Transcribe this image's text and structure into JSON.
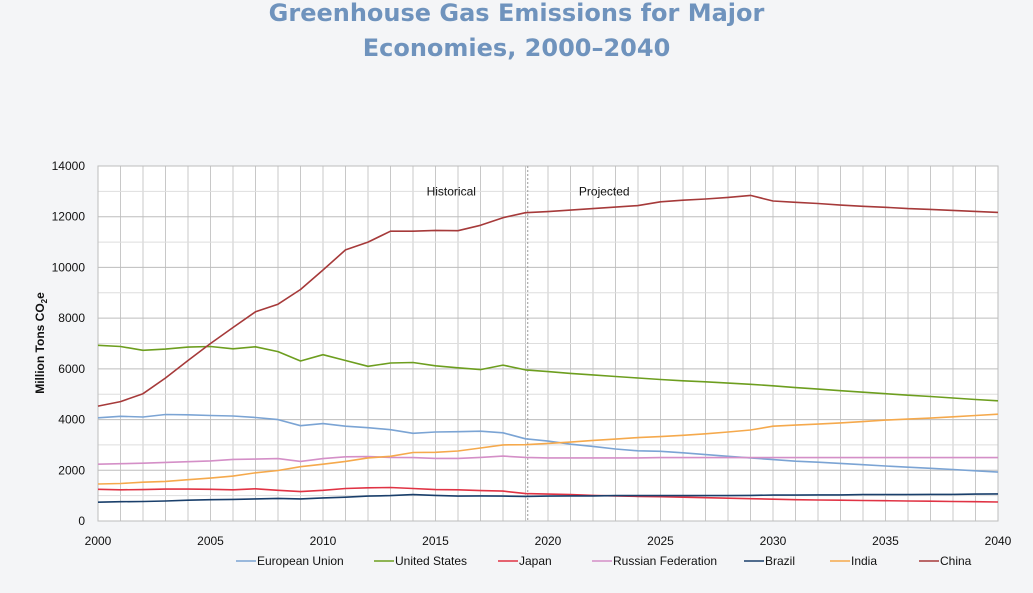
{
  "chart_data": {
    "type": "line",
    "title_line1": "Greenhouse Gas Emissions for Major",
    "title_line2": "Economies, 2000–2040",
    "xlabel": "",
    "ylabel_main": "Million Tons CO",
    "ylabel_sub": "2",
    "ylabel_end": "e",
    "xlim": [
      2000,
      2040
    ],
    "ylim": [
      0,
      14000
    ],
    "x_ticks": [
      2000,
      2005,
      2010,
      2015,
      2020,
      2025,
      2030,
      2035,
      2040
    ],
    "y_ticks": [
      0,
      2000,
      4000,
      6000,
      8000,
      10000,
      12000,
      14000
    ],
    "grid": true,
    "annotations": [
      {
        "text": "Historical",
        "x": 2015.7,
        "y": 13000
      },
      {
        "text": "Projected",
        "x": 2022.5,
        "y": 13000
      }
    ],
    "divider_x": 2019.1,
    "x": [
      2000,
      2001,
      2002,
      2003,
      2004,
      2005,
      2006,
      2007,
      2008,
      2009,
      2010,
      2011,
      2012,
      2013,
      2014,
      2015,
      2016,
      2017,
      2018,
      2019,
      2020,
      2021,
      2022,
      2023,
      2024,
      2025,
      2026,
      2027,
      2028,
      2029,
      2030,
      2031,
      2032,
      2033,
      2034,
      2035,
      2036,
      2037,
      2038,
      2039,
      2040
    ],
    "series": [
      {
        "name": "European Union",
        "color": "#7ba4d4",
        "values": [
          4070,
          4130,
          4100,
          4200,
          4190,
          4160,
          4140,
          4080,
          4000,
          3760,
          3840,
          3740,
          3680,
          3600,
          3460,
          3510,
          3520,
          3540,
          3480,
          3240,
          3150,
          3030,
          2940,
          2840,
          2770,
          2750,
          2690,
          2620,
          2550,
          2490,
          2420,
          2360,
          2320,
          2270,
          2220,
          2170,
          2120,
          2080,
          2030,
          1980,
          1930
        ]
      },
      {
        "name": "United States",
        "color": "#6d9e1f",
        "values": [
          6930,
          6880,
          6730,
          6780,
          6860,
          6880,
          6790,
          6870,
          6680,
          6310,
          6560,
          6330,
          6100,
          6230,
          6250,
          6120,
          6040,
          5970,
          6150,
          5960,
          5890,
          5820,
          5760,
          5700,
          5640,
          5580,
          5530,
          5490,
          5440,
          5390,
          5330,
          5260,
          5200,
          5140,
          5080,
          5020,
          4960,
          4910,
          4850,
          4790,
          4740
        ]
      },
      {
        "name": "Japan",
        "color": "#e03344",
        "values": [
          1250,
          1230,
          1240,
          1260,
          1260,
          1250,
          1230,
          1270,
          1210,
          1160,
          1210,
          1280,
          1310,
          1320,
          1280,
          1240,
          1230,
          1200,
          1180,
          1080,
          1060,
          1040,
          1010,
          990,
          970,
          960,
          940,
          920,
          900,
          880,
          860,
          840,
          830,
          820,
          810,
          800,
          790,
          780,
          770,
          760,
          750
        ]
      },
      {
        "name": "Russian Federation",
        "color": "#d48fc7",
        "values": [
          2240,
          2260,
          2280,
          2310,
          2340,
          2370,
          2430,
          2440,
          2460,
          2350,
          2460,
          2530,
          2540,
          2510,
          2500,
          2470,
          2470,
          2510,
          2560,
          2510,
          2490,
          2490,
          2490,
          2490,
          2490,
          2500,
          2500,
          2500,
          2500,
          2500,
          2500,
          2500,
          2500,
          2500,
          2500,
          2500,
          2500,
          2500,
          2500,
          2500,
          2500
        ]
      },
      {
        "name": "Brazil",
        "color": "#1a3f6b",
        "values": [
          740,
          760,
          770,
          790,
          820,
          840,
          850,
          870,
          890,
          870,
          910,
          940,
          980,
          1000,
          1040,
          1010,
          980,
          990,
          980,
          970,
          980,
          990,
          990,
          1000,
          1000,
          1000,
          1000,
          1000,
          1000,
          1010,
          1020,
          1020,
          1030,
          1030,
          1040,
          1040,
          1040,
          1050,
          1050,
          1060,
          1070
        ]
      },
      {
        "name": "India",
        "color": "#f5a94c",
        "values": [
          1460,
          1480,
          1530,
          1560,
          1630,
          1690,
          1770,
          1900,
          1990,
          2140,
          2240,
          2350,
          2490,
          2550,
          2700,
          2710,
          2760,
          2880,
          3000,
          3010,
          3060,
          3110,
          3180,
          3230,
          3290,
          3330,
          3380,
          3440,
          3510,
          3590,
          3740,
          3780,
          3820,
          3870,
          3920,
          3980,
          4020,
          4060,
          4110,
          4160,
          4210
        ]
      },
      {
        "name": "China",
        "color": "#a63a3a",
        "values": [
          4530,
          4710,
          5020,
          5640,
          6330,
          7000,
          7630,
          8250,
          8550,
          9130,
          9900,
          10690,
          11000,
          11430,
          11430,
          11460,
          11450,
          11660,
          11960,
          12160,
          12200,
          12260,
          12320,
          12380,
          12440,
          12590,
          12650,
          12700,
          12760,
          12840,
          12620,
          12570,
          12520,
          12460,
          12410,
          12370,
          12320,
          12290,
          12250,
          12210,
          12170
        ]
      }
    ]
  }
}
